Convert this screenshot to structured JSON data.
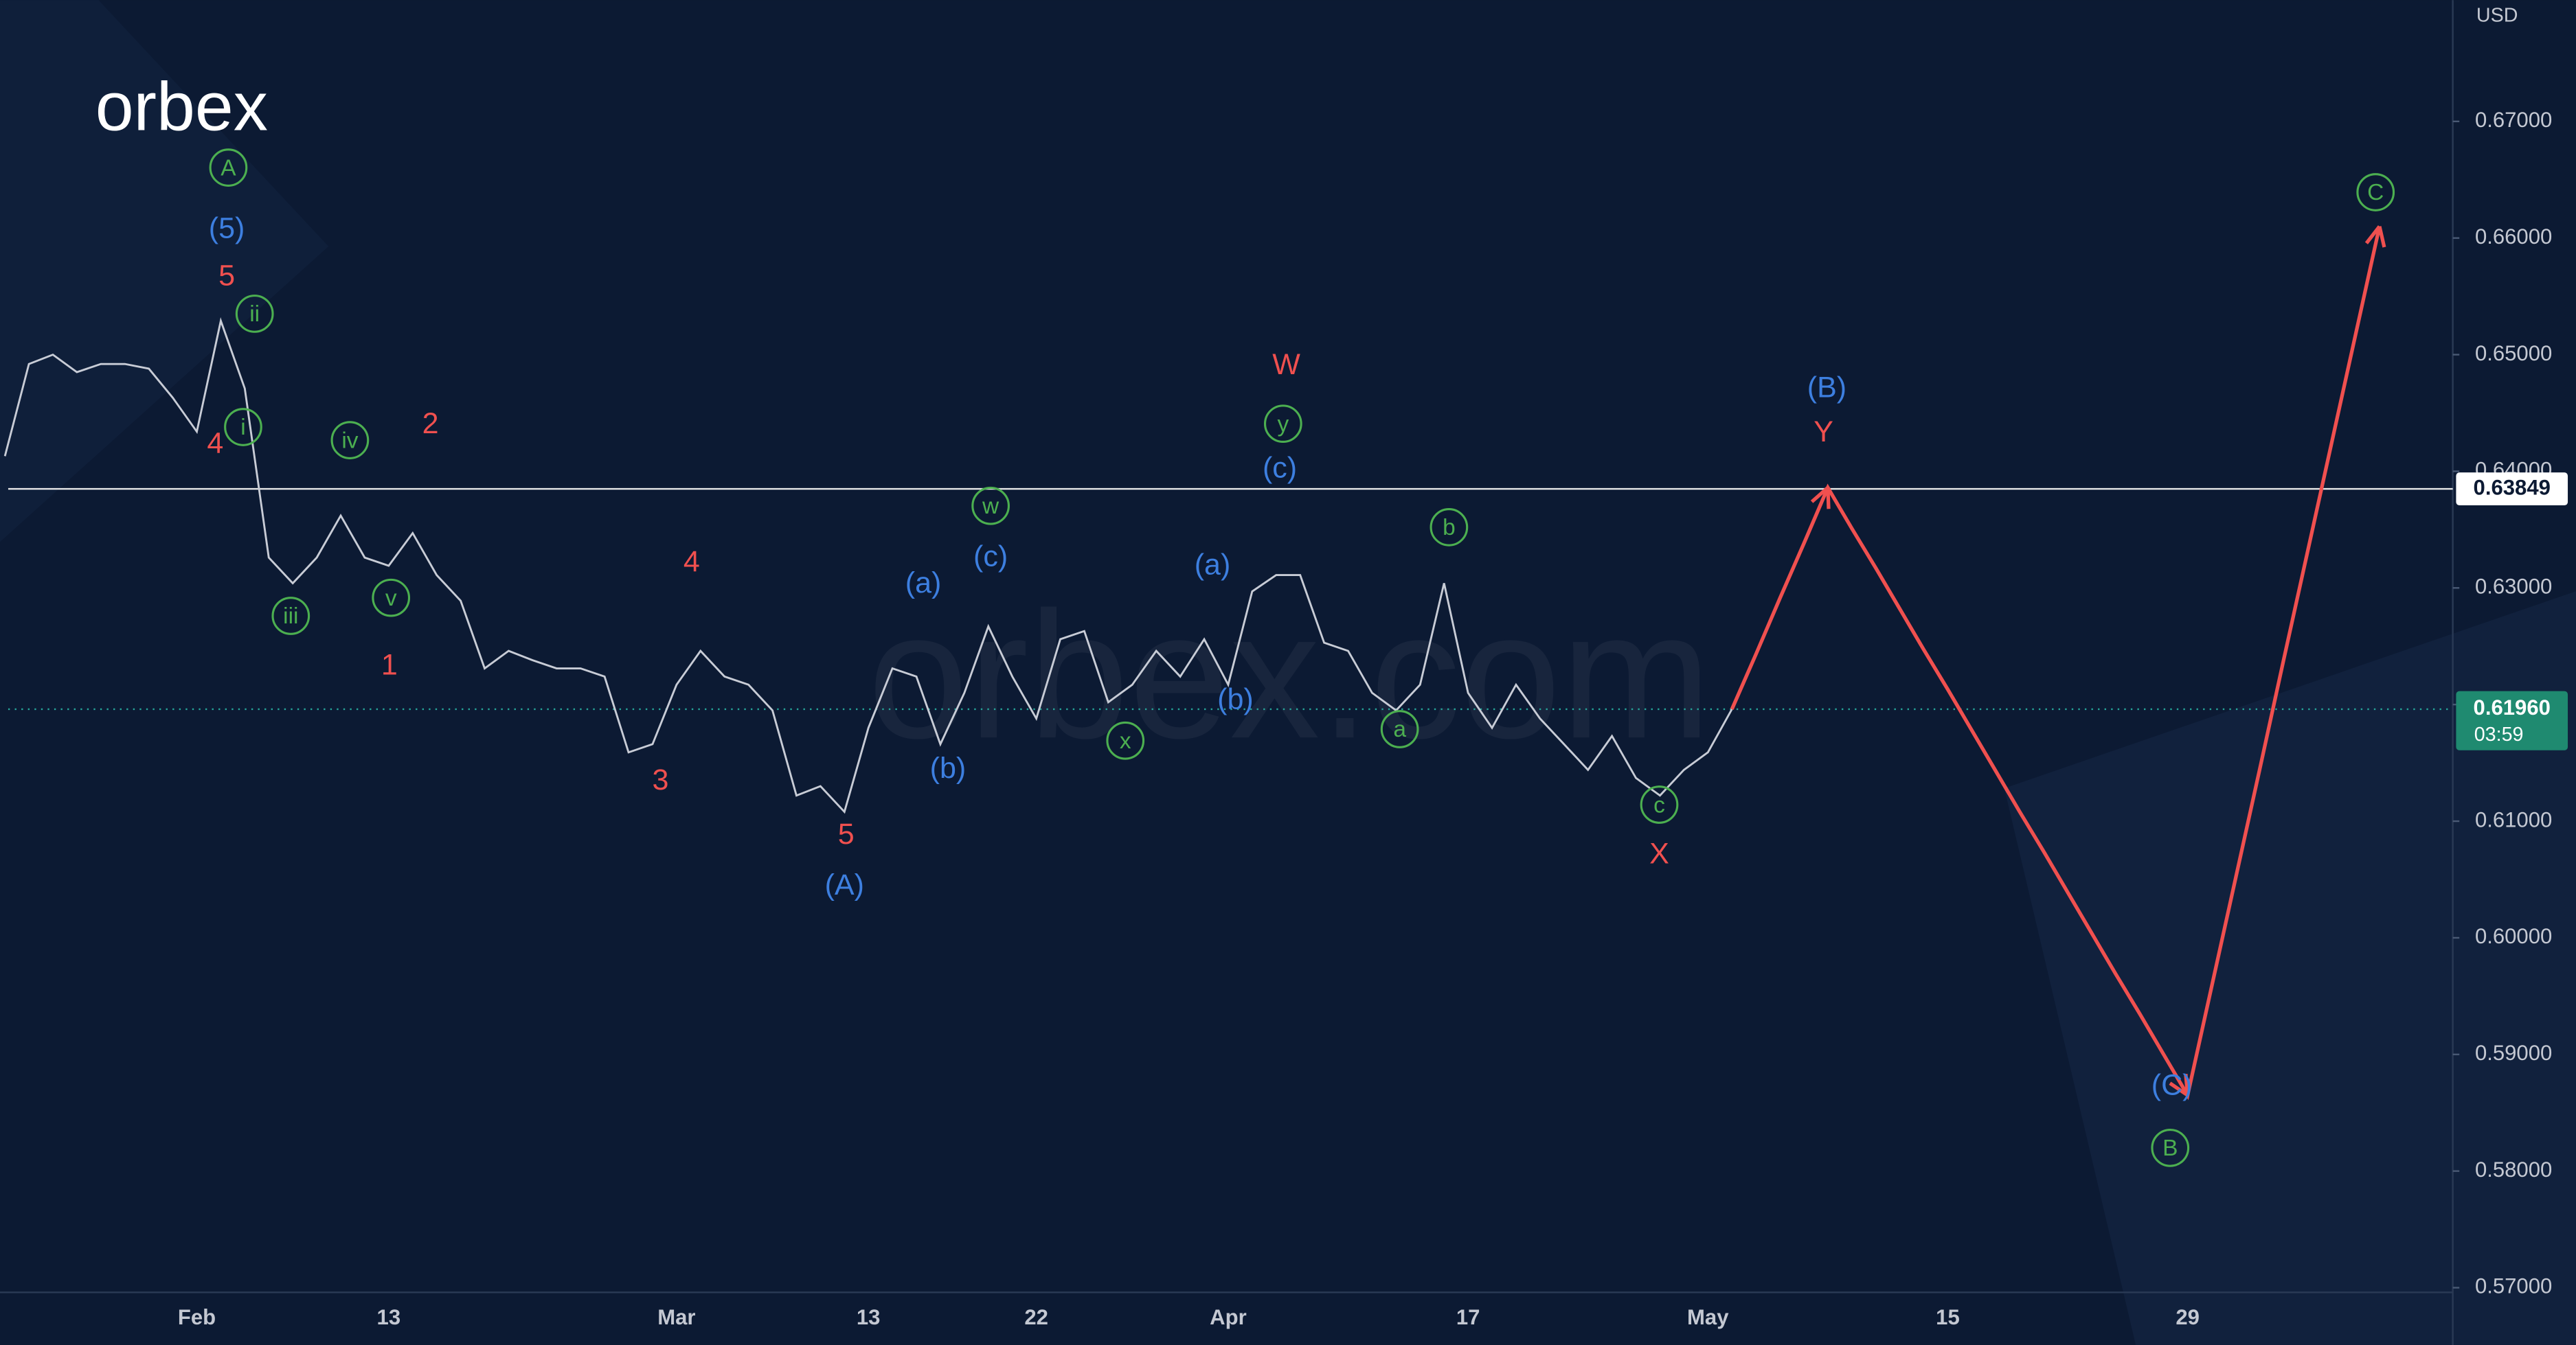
{
  "chart_data": {
    "type": "line",
    "currency": "USD",
    "logo": "orbex",
    "watermark": "orbex.com",
    "categories": [
      null,
      null,
      null,
      null,
      null,
      null,
      null,
      null,
      "Feb",
      null,
      null,
      null,
      null,
      null,
      null,
      null,
      "13",
      null,
      null,
      null,
      null,
      null,
      null,
      null,
      null,
      null,
      null,
      null,
      "Mar",
      null,
      null,
      null,
      null,
      null,
      null,
      null,
      "13",
      null,
      null,
      null,
      null,
      null,
      null,
      "22",
      null,
      null,
      null,
      null,
      null,
      null,
      null,
      "Apr",
      null,
      null,
      null,
      null,
      null,
      null,
      null,
      null,
      null,
      "17",
      null,
      null,
      null,
      null,
      null,
      null,
      null,
      null,
      null,
      "May",
      null,
      null,
      null,
      null,
      null,
      null,
      null,
      null,
      null,
      "15",
      null,
      null,
      null,
      null,
      null,
      null,
      null,
      null,
      null,
      "29",
      null,
      null,
      null,
      null,
      null,
      null,
      null,
      null,
      null,
      null,
      null
    ],
    "series": [
      {
        "color": "#c8ccd6",
        "values": [
          0.6413,
          0.6492,
          0.65,
          0.6485,
          0.6492,
          0.6492,
          0.6488,
          0.6463,
          0.6434,
          0.6529,
          0.6471,
          0.6326,
          0.6304,
          0.6326,
          0.6362,
          0.6326,
          0.6319,
          0.6347,
          0.6311,
          0.6289,
          0.6231,
          0.6246,
          0.6238,
          0.6231,
          0.6231,
          0.6224,
          0.6159,
          0.6166,
          0.6217,
          0.6246,
          0.6224,
          0.6217,
          0.6195,
          0.6122,
          0.613,
          0.6108,
          0.618,
          0.6231,
          0.6224,
          0.6166,
          0.621,
          0.6267,
          0.6224,
          0.6188,
          0.6256,
          0.6263,
          0.6202,
          0.6217,
          0.6246,
          0.6224,
          0.6256,
          0.6217,
          0.6297,
          0.6311,
          0.6311,
          0.6253,
          0.6246,
          0.621,
          0.6195,
          0.6217,
          0.6304,
          0.621,
          0.618,
          0.6217,
          0.6188,
          0.6166,
          0.6144,
          0.6173,
          0.6137,
          0.6122,
          0.6144,
          0.6159,
          0.6196,
          null,
          null,
          null,
          null,
          null,
          null,
          null,
          null,
          null,
          null,
          null,
          null,
          null,
          null,
          null,
          null,
          null,
          null,
          null,
          null,
          null,
          null,
          null,
          null,
          null,
          null,
          null,
          null,
          null,
          null
        ]
      },
      {
        "color": "#f0504f",
        "values": [
          null,
          null,
          null,
          null,
          null,
          null,
          null,
          null,
          null,
          null,
          null,
          null,
          null,
          null,
          null,
          null,
          null,
          null,
          null,
          null,
          null,
          null,
          null,
          null,
          null,
          null,
          null,
          null,
          null,
          null,
          null,
          null,
          null,
          null,
          null,
          null,
          null,
          null,
          null,
          null,
          null,
          null,
          null,
          null,
          null,
          null,
          null,
          null,
          null,
          null,
          null,
          null,
          null,
          null,
          null,
          null,
          null,
          null,
          null,
          null,
          null,
          null,
          null,
          null,
          null,
          null,
          null,
          null,
          null,
          null,
          null,
          null,
          0.6196,
          0.6243,
          0.6291,
          0.6338,
          0.6386,
          0.6351,
          0.6317,
          0.6282,
          0.6247,
          0.6213,
          0.6178,
          0.6143,
          0.6108,
          0.6074,
          0.6039,
          0.6004,
          0.5969,
          0.5935,
          0.59,
          0.5865,
          0.5958,
          0.6051,
          0.6144,
          0.6238,
          0.6331,
          0.6424,
          0.6517,
          0.661,
          null,
          null,
          null
        ]
      }
    ],
    "ylim": [
      0.5696,
      0.6804
    ],
    "yticks": [
      {
        "value": 0.57,
        "label": "0.57000"
      },
      {
        "value": 0.58,
        "label": "0.58000"
      },
      {
        "value": 0.59,
        "label": "0.59000"
      },
      {
        "value": 0.6,
        "label": "0.60000"
      },
      {
        "value": 0.61,
        "label": "0.61000"
      },
      {
        "value": 0.62,
        "label": "0.62000"
      },
      {
        "value": 0.63,
        "label": "0.63000"
      },
      {
        "value": 0.64,
        "label": "0.64000"
      },
      {
        "value": 0.65,
        "label": "0.65000"
      },
      {
        "value": 0.66,
        "label": "0.66000"
      },
      {
        "value": 0.67,
        "label": "0.67000"
      }
    ],
    "price_line": {
      "value": 0.63849,
      "label": "0.63849"
    },
    "last_price": {
      "value": 0.6196,
      "label": "0.61960",
      "countdown": "03:59"
    },
    "annotations": [
      {
        "text": "A",
        "color": "#4caf50",
        "circled": true
      },
      {
        "text": "(5)",
        "color": "#3d7fe0",
        "circled": false
      },
      {
        "text": "5",
        "color": "#f0504f",
        "circled": false
      },
      {
        "text": "ii",
        "color": "#4caf50",
        "circled": true
      },
      {
        "text": "4",
        "color": "#f0504f",
        "circled": false
      },
      {
        "text": "i",
        "color": "#4caf50",
        "circled": true
      },
      {
        "text": "iv",
        "color": "#4caf50",
        "circled": true
      },
      {
        "text": "2",
        "color": "#f0504f",
        "circled": false
      },
      {
        "text": "iii",
        "color": "#4caf50",
        "circled": true
      },
      {
        "text": "v",
        "color": "#4caf50",
        "circled": true
      },
      {
        "text": "1",
        "color": "#f0504f",
        "circled": false
      },
      {
        "text": "4",
        "color": "#f0504f",
        "circled": false
      },
      {
        "text": "3",
        "color": "#f0504f",
        "circled": false
      },
      {
        "text": "5",
        "color": "#f0504f",
        "circled": false
      },
      {
        "text": "(A)",
        "color": "#3d7fe0",
        "circled": false
      },
      {
        "text": "(a)",
        "color": "#3d7fe0",
        "circled": false
      },
      {
        "text": "(b)",
        "color": "#3d7fe0",
        "circled": false
      },
      {
        "text": "w",
        "color": "#4caf50",
        "circled": true
      },
      {
        "text": "(c)",
        "color": "#3d7fe0",
        "circled": false
      },
      {
        "text": "x",
        "color": "#4caf50",
        "circled": true
      },
      {
        "text": "(a)",
        "color": "#3d7fe0",
        "circled": false
      },
      {
        "text": "(b)",
        "color": "#3d7fe0",
        "circled": false
      },
      {
        "text": "W",
        "color": "#f0504f",
        "circled": false
      },
      {
        "text": "y",
        "color": "#4caf50",
        "circled": true
      },
      {
        "text": "(c)",
        "color": "#3d7fe0",
        "circled": false
      },
      {
        "text": "b",
        "color": "#4caf50",
        "circled": true
      },
      {
        "text": "a",
        "color": "#4caf50",
        "circled": true
      },
      {
        "text": "c",
        "color": "#4caf50",
        "circled": true
      },
      {
        "text": "X",
        "color": "#f0504f",
        "circled": false
      },
      {
        "text": "(B)",
        "color": "#3d7fe0",
        "circled": false
      },
      {
        "text": "Y",
        "color": "#f0504f",
        "circled": false
      },
      {
        "text": "(C)",
        "color": "#3d7fe0",
        "circled": false
      },
      {
        "text": "B",
        "color": "#4caf50",
        "circled": true
      },
      {
        "text": "C",
        "color": "#4caf50",
        "circled": true
      }
    ]
  }
}
